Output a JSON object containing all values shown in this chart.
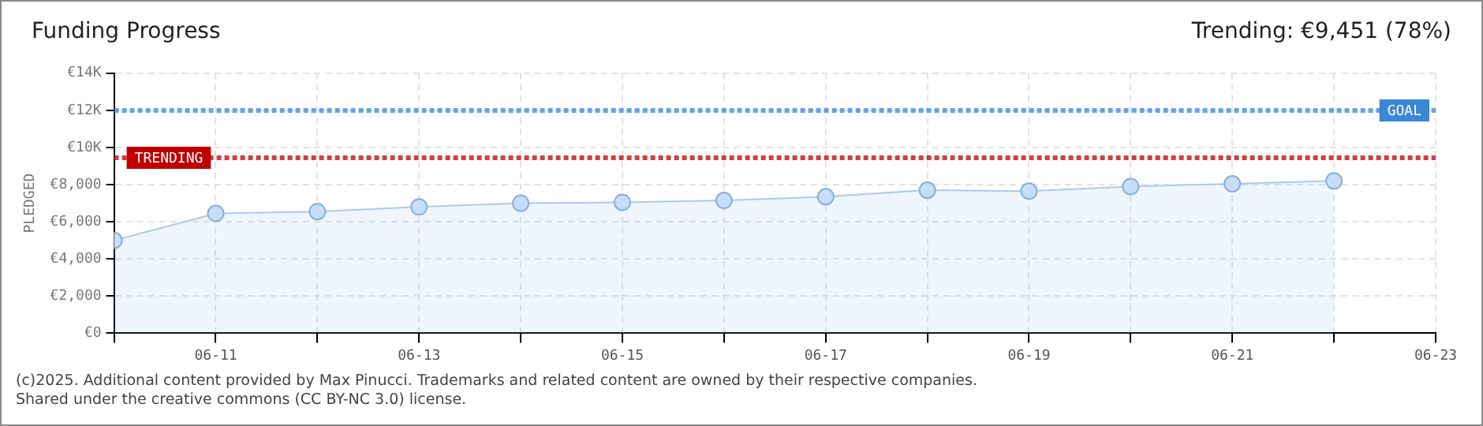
{
  "chart_data": {
    "type": "area",
    "title": "Funding Progress",
    "subtitle": "Trending: €9,451 (78%)",
    "ylabel": "PLEDGED",
    "x": [
      "--06-10",
      "--06-11",
      "--06-12",
      "--06-13",
      "--06-14",
      "--06-15",
      "--06-16",
      "--06-17",
      "--06-18",
      "--06-19",
      "--06-20",
      "--06-21",
      "--06-22"
    ],
    "series": [
      {
        "color": "#a9cbf0",
        "values": [
          5000,
          6450,
          6550,
          6800,
          7000,
          7050,
          7150,
          7350,
          7700,
          7650,
          7900,
          8050,
          8200
        ]
      }
    ],
    "xlim": [
      "--06-10",
      "--06-23"
    ],
    "xticks": [
      {
        "value": "--06-10",
        "label": null
      },
      {
        "value": "--06-11",
        "label": "06-11"
      },
      {
        "value": "--06-12",
        "label": null
      },
      {
        "value": "--06-13",
        "label": "06-13"
      },
      {
        "value": "--06-14",
        "label": null
      },
      {
        "value": "--06-15",
        "label": "06-15"
      },
      {
        "value": "--06-16",
        "label": null
      },
      {
        "value": "--06-17",
        "label": "06-17"
      },
      {
        "value": "--06-18",
        "label": null
      },
      {
        "value": "--06-19",
        "label": "06-19"
      },
      {
        "value": "--06-20",
        "label": null
      },
      {
        "value": "--06-21",
        "label": "06-21"
      },
      {
        "value": "--06-22",
        "label": null
      },
      {
        "value": "--06-23",
        "label": "06-23"
      }
    ],
    "ylim": [
      0,
      14000
    ],
    "yticks": [
      {
        "value": 0,
        "label": "€0"
      },
      {
        "value": 2000,
        "label": "€2,000"
      },
      {
        "value": 4000,
        "label": "€4,000"
      },
      {
        "value": 6000,
        "label": "€6,000"
      },
      {
        "value": 8000,
        "label": "€8,000"
      },
      {
        "value": 10000,
        "label": "€10K"
      },
      {
        "value": 12000,
        "label": "€12K"
      },
      {
        "value": 14000,
        "label": "€14K"
      }
    ],
    "ref_lines": [
      {
        "axis": "y",
        "value": 12000,
        "label": "GOAL",
        "color": "#3a87d6",
        "line_style": "dotted"
      },
      {
        "axis": "y",
        "value": 9451,
        "label": "TRENDING",
        "color": "#c00000",
        "line_style": "dotted"
      }
    ],
    "annotations": [
      "(c)2025. Additional content provided by Max Pinucci. Trademarks and related content are owned by their respective companies.",
      "Shared under the creative commons (CC BY-NC 3.0) license."
    ],
    "grid": true,
    "legend": false,
    "marker": "circle",
    "line_style": "solid"
  }
}
